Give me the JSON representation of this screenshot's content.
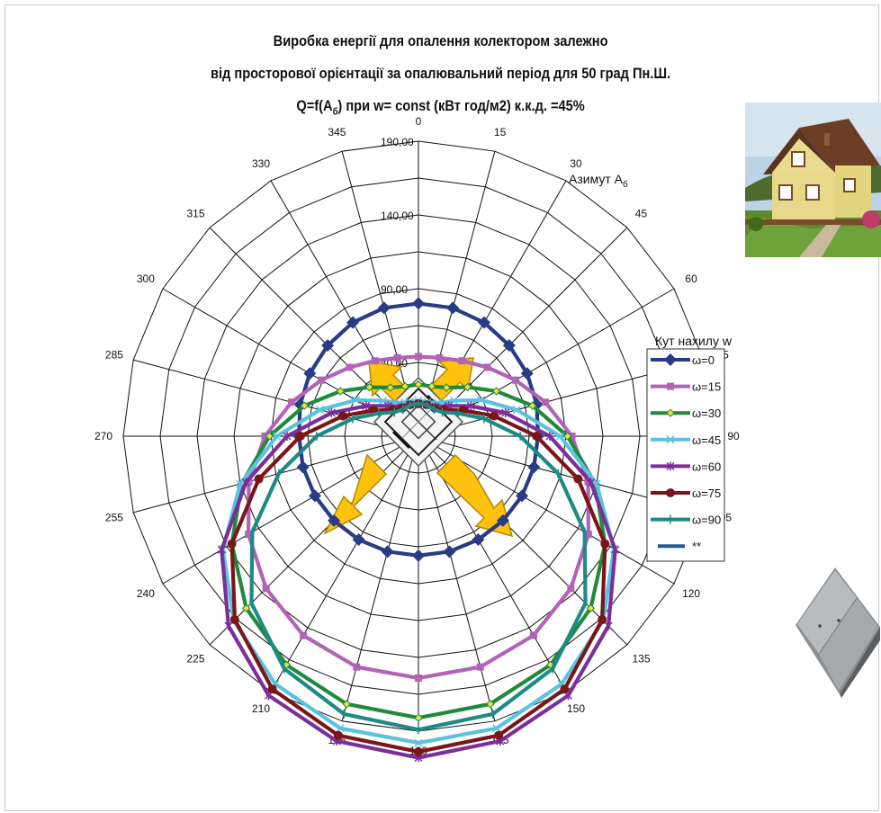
{
  "title": {
    "line1": "Виробка енергії  для опалення колектором  залежно",
    "line2": "від просторової орієнтації за опалювальний період для 50 град Пн.Ш.",
    "line3_pre": "Q=f(A",
    "line3_sub": "б",
    "line3_post": ") при w= const (кВт год/м2) к.к.д. =45%"
  },
  "labels": {
    "azimuth_pre": "Азимут А",
    "azimuth_sub": "б",
    "tilt_title": "Кут нахилу  w"
  },
  "images": {
    "house": "house-photo",
    "collector": "solar-collector-panel",
    "arrows": "orientation-arrows"
  },
  "colors": {
    "w0": "#283c86",
    "w15": "#b163b8",
    "w30": "#1f8a3c",
    "w45": "#5bc3e0",
    "w60": "#7a2f9a",
    "w75": "#7a1518",
    "w90": "#1e8a85",
    "extra": "#1f5c99",
    "arrow": "#ffc20e"
  },
  "chart_data": {
    "type": "polar-line",
    "title": "Виробка енергії  для опалення колектором  залежно від просторової орієнтації за опалювальний період для 50 град Пн.Ш. Q=f(Aб) при w= const (кВт год/м2) к.к.д. =45%",
    "angle_label": "Азимут Аб",
    "legend_title": "Кут нахилу  w",
    "angles": [
      0,
      15,
      30,
      45,
      60,
      75,
      90,
      105,
      120,
      135,
      150,
      165,
      180,
      195,
      210,
      225,
      240,
      255,
      270,
      285,
      300,
      315,
      330,
      345
    ],
    "radial_ticks": [
      "40,00",
      "90,00",
      "140,00",
      "190,00"
    ],
    "rlim": [
      -10,
      190
    ],
    "legend_position": "right",
    "series": [
      {
        "name": "ω=0",
        "marker": "diamond",
        "color": "#283c86",
        "values": [
          80,
          80,
          79,
          77,
          75,
          73,
          71,
          71,
          71,
          71,
          71,
          71,
          71,
          71,
          71,
          71,
          71,
          71,
          71,
          73,
          75,
          77,
          79,
          80
        ]
      },
      {
        "name": "ω=15",
        "marker": "square",
        "color": "#b163b8",
        "values": [
          44,
          45,
          49,
          56,
          66,
          79,
          94,
          109,
          123,
          136,
          146,
          152,
          154,
          152,
          146,
          136,
          123,
          109,
          94,
          79,
          66,
          56,
          49,
          45
        ]
      },
      {
        "name": "ω=30",
        "marker": "diamond-small",
        "color": "#1f8a3c",
        "values": [
          25,
          25,
          28,
          37,
          51,
          70,
          91,
          114,
          136,
          155,
          169,
          178,
          181,
          178,
          169,
          155,
          136,
          114,
          91,
          70,
          51,
          37,
          28,
          25
        ]
      },
      {
        "name": "ω=45",
        "marker": "x",
        "color": "#5bc3e0",
        "values": [
          14,
          14,
          16,
          24,
          39,
          59,
          86,
          115,
          143,
          167,
          184,
          195,
          198,
          195,
          184,
          167,
          143,
          115,
          86,
          59,
          39,
          24,
          16,
          14
        ]
      },
      {
        "name": "ω=60",
        "marker": "asterisk",
        "color": "#7a2f9a",
        "values": [
          12,
          12,
          13,
          19,
          31,
          51,
          79,
          111,
          144,
          172,
          193,
          204,
          208,
          204,
          193,
          172,
          144,
          111,
          79,
          51,
          31,
          19,
          13,
          12
        ]
      },
      {
        "name": "ω=75",
        "marker": "circle",
        "color": "#7a1518",
        "values": [
          12,
          12,
          12,
          15,
          25,
          43,
          70,
          102,
          136,
          166,
          188,
          200,
          204,
          200,
          188,
          166,
          136,
          102,
          70,
          43,
          25,
          15,
          12,
          12
        ]
      },
      {
        "name": "ω=90",
        "marker": "plus",
        "color": "#1e8a85",
        "values": [
          12,
          12,
          11,
          13,
          21,
          36,
          59,
          88,
          120,
          150,
          172,
          185,
          189,
          185,
          172,
          150,
          120,
          88,
          59,
          36,
          21,
          13,
          11,
          12
        ]
      },
      {
        "name": "**",
        "marker": "dash",
        "color": "#1f5c99",
        "values": []
      }
    ]
  }
}
